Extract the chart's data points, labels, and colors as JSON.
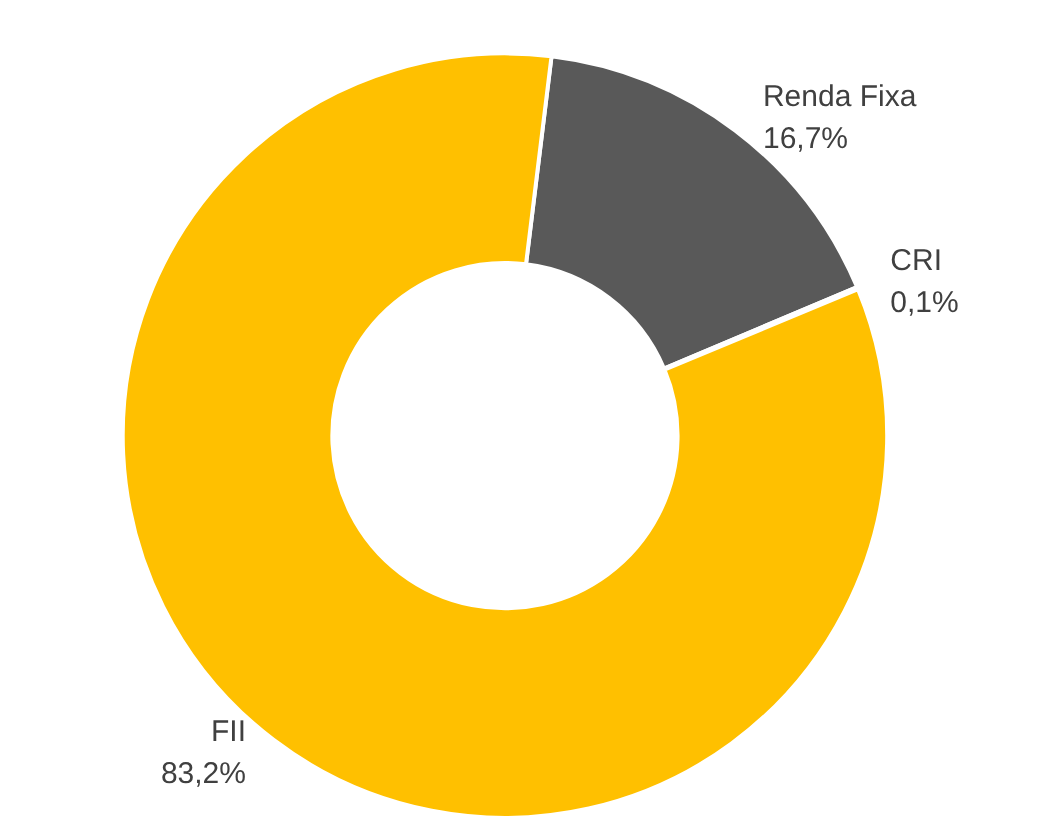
{
  "chart_data": {
    "type": "donut",
    "categories": [
      "Renda Fixa",
      "CRI",
      "FII"
    ],
    "values": [
      16.7,
      0.1,
      83.2
    ],
    "value_labels": [
      "16,7%",
      "0,1%",
      "83,2%"
    ],
    "colors": [
      "#595959",
      "#dce6f2",
      "#ffc000"
    ],
    "legend": false
  }
}
